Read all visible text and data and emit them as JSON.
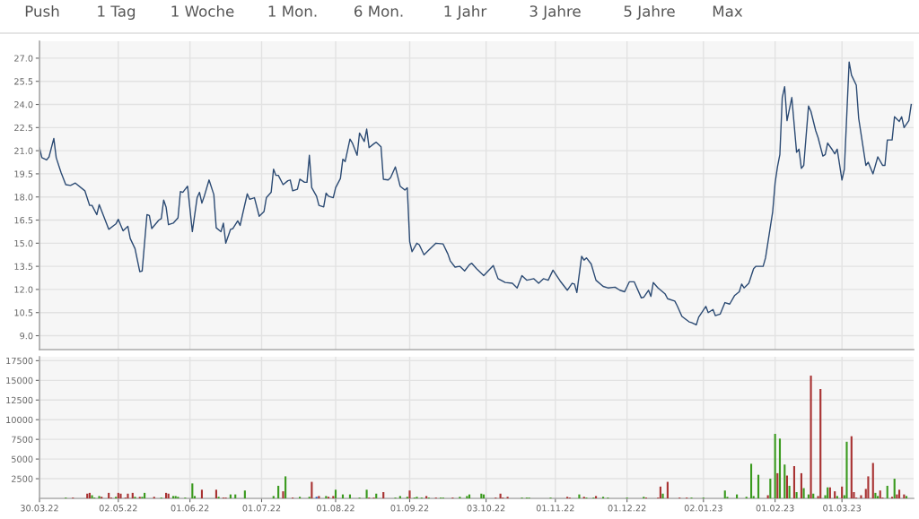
{
  "chart_data": [
    {
      "type": "line",
      "annotations": [
        "Push",
        "1 Tag",
        "1 Woche",
        "1 Mon.",
        "6 Mon.",
        "1 Jahr",
        "3 Jahre",
        "5 Jahre",
        "Max"
      ],
      "x": [
        "2022-03-30",
        "2022-03-31",
        "2022-04-02",
        "2022-04-03",
        "2022-04-05",
        "2022-04-06",
        "2022-04-08",
        "2022-04-10",
        "2022-04-12",
        "2022-04-14",
        "2022-04-18",
        "2022-04-20",
        "2022-04-21",
        "2022-04-23",
        "2022-04-24",
        "2022-04-28",
        "2022-05-01",
        "2022-05-02",
        "2022-05-04",
        "2022-05-06",
        "2022-05-07",
        "2022-05-09",
        "2022-05-11",
        "2022-05-12",
        "2022-05-14",
        "2022-05-15",
        "2022-05-16",
        "2022-05-19",
        "2022-05-20",
        "2022-05-21",
        "2022-05-22",
        "2022-05-23",
        "2022-05-25",
        "2022-05-27",
        "2022-05-28",
        "2022-05-29",
        "2022-05-31",
        "2022-06-02",
        "2022-06-04",
        "2022-06-05",
        "2022-06-06",
        "2022-06-07",
        "2022-06-09",
        "2022-06-11",
        "2022-06-12",
        "2022-06-14",
        "2022-06-15",
        "2022-06-16",
        "2022-06-18",
        "2022-06-19",
        "2022-06-21",
        "2022-06-22",
        "2022-06-23",
        "2022-06-25",
        "2022-06-26",
        "2022-06-28",
        "2022-06-30",
        "2022-07-02",
        "2022-07-03",
        "2022-07-05",
        "2022-07-06",
        "2022-07-07",
        "2022-07-08",
        "2022-07-10",
        "2022-07-12",
        "2022-07-13",
        "2022-07-14",
        "2022-07-16",
        "2022-07-17",
        "2022-07-19",
        "2022-07-20",
        "2022-07-21",
        "2022-07-22",
        "2022-07-24",
        "2022-07-25",
        "2022-07-27",
        "2022-07-28",
        "2022-07-29",
        "2022-07-31",
        "2022-08-01",
        "2022-08-03",
        "2022-08-04",
        "2022-08-05",
        "2022-08-07",
        "2022-08-08",
        "2022-08-10",
        "2022-08-11",
        "2022-08-13",
        "2022-08-14",
        "2022-08-15",
        "2022-08-17",
        "2022-08-18",
        "2022-08-20",
        "2022-08-21",
        "2022-08-23",
        "2022-08-24",
        "2022-08-26",
        "2022-08-28",
        "2022-08-30",
        "2022-08-31",
        "2022-09-01",
        "2022-09-02",
        "2022-09-04",
        "2022-09-05",
        "2022-09-07",
        "2022-09-09",
        "2022-09-12",
        "2022-09-15",
        "2022-09-17",
        "2022-09-18",
        "2022-09-20",
        "2022-09-22",
        "2022-09-24",
        "2022-09-26",
        "2022-09-27",
        "2022-09-29",
        "2022-10-02",
        "2022-10-06",
        "2022-10-08",
        "2022-10-11",
        "2022-10-14",
        "2022-10-16",
        "2022-10-18",
        "2022-10-20",
        "2022-10-23",
        "2022-10-25",
        "2022-10-27",
        "2022-10-29",
        "2022-10-31",
        "2022-11-03",
        "2022-11-06",
        "2022-11-08",
        "2022-11-09",
        "2022-11-10",
        "2022-11-12",
        "2022-11-13",
        "2022-11-14",
        "2022-11-16",
        "2022-11-18",
        "2022-11-21",
        "2022-11-23",
        "2022-11-26",
        "2022-11-28",
        "2022-11-30",
        "2022-12-02",
        "2022-12-04",
        "2022-12-07",
        "2022-12-08",
        "2022-12-10",
        "2022-12-11",
        "2022-12-12",
        "2022-12-14",
        "2022-12-17",
        "2022-12-18",
        "2022-12-21",
        "2022-12-22",
        "2022-12-24",
        "2022-12-27",
        "2022-12-28",
        "2022-12-30",
        "2022-12-31",
        "2023-01-03",
        "2023-01-04",
        "2023-01-06",
        "2023-01-07",
        "2023-01-09",
        "2023-01-11",
        "2023-01-13",
        "2023-01-15",
        "2023-01-17",
        "2023-01-18",
        "2023-01-19",
        "2023-01-21",
        "2023-01-23",
        "2023-01-24",
        "2023-01-27",
        "2023-01-28",
        "2023-01-31",
        "2023-02-01",
        "2023-02-02",
        "2023-02-03",
        "2023-02-04",
        "2023-02-05",
        "2023-02-06",
        "2023-02-08",
        "2023-02-10",
        "2023-02-11",
        "2023-02-12",
        "2023-02-13",
        "2023-02-15",
        "2023-02-16",
        "2023-02-18",
        "2023-02-19",
        "2023-02-21",
        "2023-02-22",
        "2023-02-23",
        "2023-02-25",
        "2023-02-26",
        "2023-02-27",
        "2023-03-01",
        "2023-03-02",
        "2023-03-04",
        "2023-03-05",
        "2023-03-07",
        "2023-03-08",
        "2023-03-11",
        "2023-03-12",
        "2023-03-14",
        "2023-03-16",
        "2023-03-18",
        "2023-03-19",
        "2023-03-20",
        "2023-03-22",
        "2023-03-23",
        "2023-03-25",
        "2023-03-26",
        "2023-03-27",
        "2023-03-29",
        "2023-03-30"
      ],
      "series": [
        {
          "color": "#2b4a73",
          "values": [
            21.2,
            20.55,
            20.4,
            20.6,
            21.8,
            20.55,
            19.6,
            18.8,
            18.75,
            18.9,
            18.4,
            17.45,
            17.45,
            16.85,
            17.5,
            15.9,
            16.25,
            16.55,
            15.8,
            16.1,
            15.3,
            14.65,
            13.15,
            13.2,
            16.85,
            16.8,
            15.95,
            16.5,
            16.6,
            17.8,
            17.35,
            16.2,
            16.3,
            16.65,
            18.35,
            18.3,
            18.7,
            15.75,
            17.95,
            18.3,
            17.6,
            18.05,
            19.1,
            18.15,
            16.0,
            15.75,
            16.3,
            15.0,
            15.9,
            15.95,
            16.45,
            16.15,
            16.85,
            18.2,
            17.85,
            17.95,
            16.75,
            17.05,
            17.95,
            18.3,
            19.8,
            19.4,
            19.4,
            18.8,
            19.05,
            19.1,
            18.4,
            18.5,
            19.15,
            18.95,
            18.95,
            20.7,
            18.6,
            18.05,
            17.45,
            17.35,
            18.25,
            18.05,
            17.95,
            18.6,
            19.2,
            20.45,
            20.3,
            21.75,
            21.5,
            20.7,
            22.15,
            21.6,
            22.4,
            21.2,
            21.45,
            21.55,
            21.25,
            19.15,
            19.1,
            19.25,
            19.95,
            18.7,
            18.45,
            18.6,
            15.1,
            14.45,
            15.0,
            14.9,
            14.25,
            14.55,
            15.0,
            14.95,
            14.3,
            13.85,
            13.45,
            13.5,
            13.2,
            13.6,
            13.7,
            13.35,
            12.9,
            13.55,
            12.7,
            12.45,
            12.4,
            12.1,
            12.9,
            12.6,
            12.7,
            12.4,
            12.7,
            12.6,
            13.25,
            12.55,
            11.95,
            12.4,
            12.35,
            11.8,
            14.15,
            13.9,
            14.05,
            13.65,
            12.6,
            12.2,
            12.1,
            12.15,
            11.95,
            11.85,
            12.5,
            12.5,
            11.45,
            11.5,
            11.95,
            11.55,
            12.45,
            12.1,
            11.7,
            11.4,
            11.25,
            10.95,
            10.25,
            9.9,
            9.85,
            9.7,
            10.2,
            10.9,
            10.5,
            10.7,
            10.3,
            10.4,
            11.15,
            11.05,
            11.6,
            11.85,
            12.35,
            12.1,
            12.4,
            13.35,
            13.5,
            13.5,
            14.05,
            17.05,
            18.9,
            19.95,
            20.75,
            24.45,
            25.15,
            22.95,
            24.45,
            20.9,
            21.1,
            19.85,
            20.05,
            23.9,
            23.55,
            22.3,
            21.85,
            20.65,
            20.75,
            21.5,
            21.05,
            20.8,
            21.1,
            19.1,
            19.8,
            26.75,
            25.9,
            25.25,
            23.1,
            20.05,
            20.25,
            19.5,
            20.6,
            20.05,
            20.05,
            21.7,
            21.7,
            23.2,
            22.9,
            23.2,
            22.5,
            22.95,
            24.0
          ]
        }
      ],
      "xlim": [
        "2022-03-30",
        "2023-03-31"
      ],
      "xticks": [
        {
          "value": "2022-03-30",
          "label": null
        },
        {
          "value": "2022-05-02",
          "label": null
        },
        {
          "value": "2022-06-01",
          "label": null
        },
        {
          "value": "2022-07-01",
          "label": null
        },
        {
          "value": "2022-08-01",
          "label": null
        },
        {
          "value": "2022-09-01",
          "label": null
        },
        {
          "value": "2022-10-03",
          "label": null
        },
        {
          "value": "2022-11-01",
          "label": null
        },
        {
          "value": "2022-12-01",
          "label": null
        },
        {
          "value": "2023-01-02",
          "label": null
        },
        {
          "value": "2023-02-01",
          "label": null
        },
        {
          "value": "2023-03-01",
          "label": null
        }
      ],
      "ylim": [
        8.1,
        28.1
      ],
      "yticks": [
        {
          "value": 9,
          "label": "9.0"
        },
        {
          "value": 10.5,
          "label": "10.5"
        },
        {
          "value": 12,
          "label": "12.0"
        },
        {
          "value": 13.5,
          "label": "13.5"
        },
        {
          "value": 15,
          "label": "15.0"
        },
        {
          "value": 16.5,
          "label": "16.5"
        },
        {
          "value": 18,
          "label": "18.0"
        },
        {
          "value": 19.5,
          "label": "19.5"
        },
        {
          "value": 21,
          "label": "21.0"
        },
        {
          "value": 22.5,
          "label": "22.5"
        },
        {
          "value": 24,
          "label": "24.0"
        },
        {
          "value": 25.5,
          "label": "25.5"
        },
        {
          "value": 27,
          "label": "27.0"
        }
      ],
      "grid": true,
      "tick_labels": "y"
    },
    {
      "type": "bar",
      "x": [
        "2022-04-10",
        "2022-04-13",
        "2022-04-19",
        "2022-04-20",
        "2022-04-21",
        "2022-04-22",
        "2022-04-24",
        "2022-04-25",
        "2022-04-28",
        "2022-04-29",
        "2022-05-01",
        "2022-05-02",
        "2022-05-03",
        "2022-05-05",
        "2022-05-06",
        "2022-05-08",
        "2022-05-09",
        "2022-05-11",
        "2022-05-12",
        "2022-05-13",
        "2022-05-17",
        "2022-05-20",
        "2022-05-22",
        "2022-05-23",
        "2022-05-25",
        "2022-05-26",
        "2022-05-27",
        "2022-05-30",
        "2022-06-02",
        "2022-06-03",
        "2022-06-06",
        "2022-06-12",
        "2022-06-13",
        "2022-06-15",
        "2022-06-16",
        "2022-06-18",
        "2022-06-20",
        "2022-06-24",
        "2022-07-06",
        "2022-07-08",
        "2022-07-10",
        "2022-07-11",
        "2022-07-14",
        "2022-07-17",
        "2022-07-21",
        "2022-07-22",
        "2022-07-24",
        "2022-07-25",
        "2022-07-28",
        "2022-07-29",
        "2022-07-31",
        "2022-08-01",
        "2022-08-04",
        "2022-08-07",
        "2022-08-11",
        "2022-08-14",
        "2022-08-15",
        "2022-08-17",
        "2022-08-18",
        "2022-08-21",
        "2022-08-26",
        "2022-08-28",
        "2022-08-31",
        "2022-09-01",
        "2022-09-03",
        "2022-09-04",
        "2022-09-06",
        "2022-09-08",
        "2022-09-09",
        "2022-09-12",
        "2022-09-14",
        "2022-09-15",
        "2022-09-19",
        "2022-09-22",
        "2022-09-25",
        "2022-09-26",
        "2022-10-01",
        "2022-10-02",
        "2022-10-07",
        "2022-10-09",
        "2022-10-10",
        "2022-10-12",
        "2022-10-18",
        "2022-10-20",
        "2022-10-21",
        "2022-10-30",
        "2022-11-06",
        "2022-11-07",
        "2022-11-11",
        "2022-11-13",
        "2022-11-14",
        "2022-11-17",
        "2022-11-18",
        "2022-11-21",
        "2022-11-23",
        "2022-12-01",
        "2022-12-08",
        "2022-12-09",
        "2022-12-14",
        "2022-12-15",
        "2022-12-16",
        "2022-12-18",
        "2022-12-23",
        "2022-12-26",
        "2022-12-28",
        "2023-01-02",
        "2023-01-11",
        "2023-01-12",
        "2023-01-16",
        "2023-01-20",
        "2023-01-22",
        "2023-01-23",
        "2023-01-25",
        "2023-01-29",
        "2023-01-30",
        "2023-02-01",
        "2023-02-02",
        "2023-02-03",
        "2023-02-05",
        "2023-02-06",
        "2023-02-07",
        "2023-02-09",
        "2023-02-10",
        "2023-02-12",
        "2023-02-13",
        "2023-02-15",
        "2023-02-16",
        "2023-02-17",
        "2023-02-19",
        "2023-02-20",
        "2023-02-22",
        "2023-02-23",
        "2023-02-24",
        "2023-02-26",
        "2023-02-27",
        "2023-03-01",
        "2023-03-02",
        "2023-03-03",
        "2023-03-05",
        "2023-03-06",
        "2023-03-07",
        "2023-03-09",
        "2023-03-11",
        "2023-03-12",
        "2023-03-14",
        "2023-03-15",
        "2023-03-16",
        "2023-03-17",
        "2023-03-18",
        "2023-03-20",
        "2023-03-22",
        "2023-03-23",
        "2023-03-24",
        "2023-03-25",
        "2023-03-27",
        "2023-03-28"
      ],
      "values": [
        100,
        100,
        600,
        700,
        400,
        100,
        300,
        200,
        700,
        100,
        200,
        700,
        600,
        100,
        600,
        700,
        200,
        200,
        200,
        700,
        200,
        100,
        700,
        600,
        300,
        300,
        200,
        100,
        1900,
        300,
        1100,
        1100,
        200,
        100,
        100,
        500,
        500,
        1000,
        300,
        1600,
        900,
        2800,
        100,
        200,
        200,
        2100,
        200,
        300,
        300,
        200,
        300,
        1100,
        500,
        500,
        100,
        1100,
        100,
        100,
        600,
        800,
        100,
        300,
        200,
        1000,
        100,
        200,
        100,
        300,
        100,
        100,
        100,
        100,
        100,
        200,
        300,
        500,
        600,
        500,
        100,
        600,
        100,
        200,
        100,
        100,
        100,
        100,
        200,
        100,
        500,
        200,
        100,
        100,
        300,
        200,
        100,
        100,
        200,
        100,
        100,
        1500,
        600,
        2100,
        100,
        100,
        100,
        100,
        1000,
        200,
        500,
        200,
        4400,
        300,
        3000,
        400,
        2500,
        8200,
        3200,
        7600,
        4300,
        2900,
        1600,
        4100,
        800,
        3200,
        1300,
        500,
        15600,
        600,
        300,
        13900,
        400,
        1400,
        1400,
        900,
        300,
        1500,
        400,
        7200,
        7900,
        800,
        100,
        400,
        1200,
        2800,
        4500,
        700,
        300,
        1000,
        100,
        1600,
        200,
        2500,
        500,
        1100,
        500,
        300
      ],
      "colors": [
        "#3a9a1e",
        "#a83232",
        "#a83232",
        "#a83232",
        "#3a9a1e",
        "#3a9a1e",
        "#3a9a1e",
        "#a83232",
        "#a83232",
        "#a83232",
        "#3a9a1e",
        "#a83232",
        "#a83232",
        "#a83232",
        "#a83232",
        "#a83232",
        "#3a9a1e",
        "#a83232",
        "#3a9a1e",
        "#3a9a1e",
        "#a83232",
        "#3a9a1e",
        "#a83232",
        "#a83232",
        "#3a9a1e",
        "#3a9a1e",
        "#3a9a1e",
        "#3a9a1e",
        "#3a9a1e",
        "#3a9a1e",
        "#a83232",
        "#a83232",
        "#3a9a1e",
        "#a83232",
        "#a83232",
        "#3a9a1e",
        "#3a9a1e",
        "#3a9a1e",
        "#3a9a1e",
        "#3a9a1e",
        "#a83232",
        "#3a9a1e",
        "#a83232",
        "#3a9a1e",
        "#3a9a1e",
        "#a83232",
        "#3060c0",
        "#a83232",
        "#3a9a1e",
        "#a83232",
        "#a83232",
        "#3a9a1e",
        "#3a9a1e",
        "#3a9a1e",
        "#3a9a1e",
        "#3a9a1e",
        "#a83232",
        "#a83232",
        "#3a9a1e",
        "#a83232",
        "#3a9a1e",
        "#3a9a1e",
        "#3a9a1e",
        "#a83232",
        "#3a9a1e",
        "#3a9a1e",
        "#3a9a1e",
        "#a83232",
        "#3a9a1e",
        "#a83232",
        "#3a9a1e",
        "#3a9a1e",
        "#a83232",
        "#3a9a1e",
        "#3a9a1e",
        "#3a9a1e",
        "#3a9a1e",
        "#3a9a1e",
        "#a83232",
        "#a83232",
        "#a83232",
        "#a83232",
        "#3a9a1e",
        "#3a9a1e",
        "#3a9a1e",
        "#3a9a1e",
        "#a83232",
        "#a83232",
        "#3a9a1e",
        "#a83232",
        "#3a9a1e",
        "#3a9a1e",
        "#a83232",
        "#3a9a1e",
        "#3a9a1e",
        "#3a9a1e",
        "#3a9a1e",
        "#a83232",
        "#a83232",
        "#a83232",
        "#3a9a1e",
        "#a83232",
        "#a83232",
        "#a83232",
        "#3a9a1e",
        "#3a9a1e",
        "#3a9a1e",
        "#3a9a1e",
        "#3a9a1e",
        "#3a9a1e",
        "#3a9a1e",
        "#3a9a1e",
        "#3a9a1e",
        "#a83232",
        "#3a9a1e",
        "#3a9a1e",
        "#a83232",
        "#3a9a1e",
        "#3a9a1e",
        "#a83232",
        "#3a9a1e",
        "#a83232",
        "#3a9a1e",
        "#a83232",
        "#3a9a1e",
        "#3a9a1e",
        "#a83232",
        "#3a9a1e",
        "#a83232",
        "#a83232",
        "#3a9a1e",
        "#3a9a1e",
        "#a83232",
        "#a83232",
        "#3a9a1e",
        "#a83232",
        "#3a9a1e",
        "#3a9a1e",
        "#a83232",
        "#a83232",
        "#a83232",
        "#a83232",
        "#a83232",
        "#a83232",
        "#a83232",
        "#3a9a1e",
        "#3a9a1e",
        "#a83232",
        "#a83232",
        "#3a9a1e",
        "#a83232",
        "#3a9a1e",
        "#a83232",
        "#a83232",
        "#a83232",
        "#3a9a1e"
      ],
      "xlim": [
        "2022-03-30",
        "2023-03-31"
      ],
      "xticks": [
        {
          "value": "2022-03-30",
          "label": "30.03.22"
        },
        {
          "value": "2022-05-02",
          "label": "02.05.22"
        },
        {
          "value": "2022-06-01",
          "label": "01.06.22"
        },
        {
          "value": "2022-07-01",
          "label": "01.07.22"
        },
        {
          "value": "2022-08-01",
          "label": "01.08.22"
        },
        {
          "value": "2022-09-01",
          "label": "01.09.22"
        },
        {
          "value": "2022-10-03",
          "label": "03.10.22"
        },
        {
          "value": "2022-11-01",
          "label": "01.11.22"
        },
        {
          "value": "2022-12-01",
          "label": "01.12.22"
        },
        {
          "value": "2023-01-02",
          "label": "02.01.23"
        },
        {
          "value": "2023-02-01",
          "label": "01.02.23"
        },
        {
          "value": "2023-03-01",
          "label": "01.03.23"
        }
      ],
      "ylim": [
        0,
        18000
      ],
      "yticks": [
        2500,
        5000,
        7500,
        10000,
        12500,
        15000,
        17500
      ],
      "grid": true
    }
  ]
}
